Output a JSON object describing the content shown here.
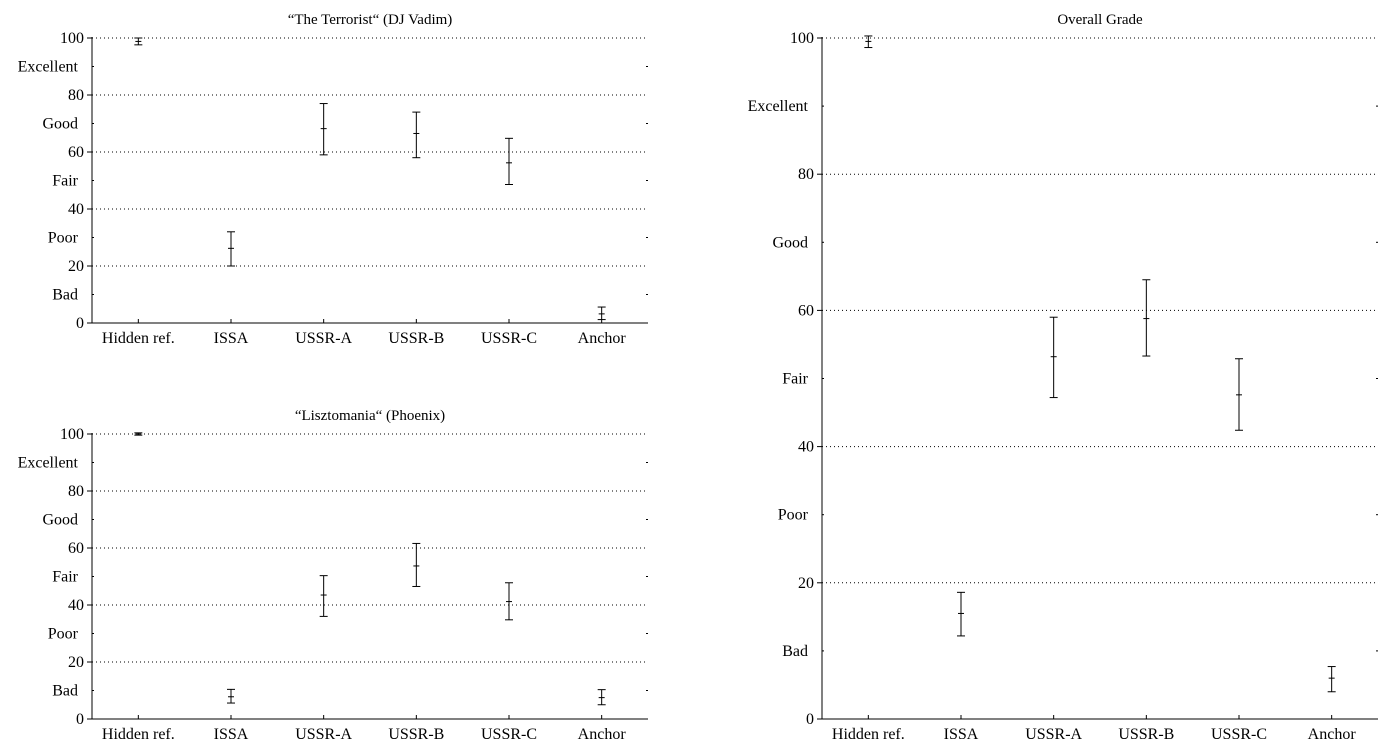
{
  "chart_data": [
    {
      "type": "errorbar",
      "title": "“The Terrorist“ (DJ Vadim)",
      "categories": [
        "Hidden ref.",
        "ISSA",
        "USSR-A",
        "USSR-B",
        "USSR-C",
        "Anchor"
      ],
      "means": [
        98.8,
        26.2,
        68.2,
        66.5,
        56.2,
        3.2
      ],
      "lower": [
        97.6,
        20.0,
        59.0,
        58.0,
        48.6,
        1.2
      ],
      "upper": [
        100.0,
        32.0,
        77.0,
        74.0,
        64.8,
        5.6
      ],
      "ylim": [
        0,
        100
      ],
      "yticks": [
        0,
        20,
        40,
        60,
        80,
        100
      ],
      "grades": [
        {
          "label": "Excellent",
          "y": 90
        },
        {
          "label": "Good",
          "y": 70
        },
        {
          "label": "Fair",
          "y": 50
        },
        {
          "label": "Poor",
          "y": 30
        },
        {
          "label": "Bad",
          "y": 10
        }
      ],
      "grid": "dotted horizontal"
    },
    {
      "type": "errorbar",
      "title": "“Lisztomania“ (Phoenix)",
      "categories": [
        "Hidden ref.",
        "ISSA",
        "USSR-A",
        "USSR-B",
        "USSR-C",
        "Anchor"
      ],
      "means": [
        100.0,
        7.8,
        43.5,
        53.7,
        41.2,
        7.5
      ],
      "lower": [
        99.6,
        5.6,
        36.0,
        46.5,
        34.8,
        5.0
      ],
      "upper": [
        100.4,
        10.4,
        50.3,
        61.6,
        47.8,
        10.3
      ],
      "ylim": [
        0,
        100
      ],
      "yticks": [
        0,
        20,
        40,
        60,
        80,
        100
      ],
      "grades": [
        {
          "label": "Excellent",
          "y": 90
        },
        {
          "label": "Good",
          "y": 70
        },
        {
          "label": "Fair",
          "y": 50
        },
        {
          "label": "Poor",
          "y": 30
        },
        {
          "label": "Bad",
          "y": 10
        }
      ],
      "grid": "dotted horizontal"
    },
    {
      "type": "errorbar",
      "title": "Overall Grade",
      "categories": [
        "Hidden ref.",
        "ISSA",
        "USSR-A",
        "USSR-B",
        "USSR-C",
        "Anchor"
      ],
      "means": [
        99.5,
        15.5,
        53.2,
        58.8,
        47.6,
        6.0
      ],
      "lower": [
        98.6,
        12.2,
        47.2,
        53.3,
        42.4,
        4.0
      ],
      "upper": [
        100.3,
        18.6,
        59.0,
        64.5,
        52.9,
        7.7
      ],
      "ylim": [
        0,
        100
      ],
      "yticks": [
        0,
        20,
        40,
        60,
        80,
        100
      ],
      "grades": [
        {
          "label": "Excellent",
          "y": 90
        },
        {
          "label": "Good",
          "y": 70
        },
        {
          "label": "Fair",
          "y": 50
        },
        {
          "label": "Poor",
          "y": 30
        },
        {
          "label": "Bad",
          "y": 10
        }
      ],
      "grid": "dotted horizontal"
    }
  ]
}
